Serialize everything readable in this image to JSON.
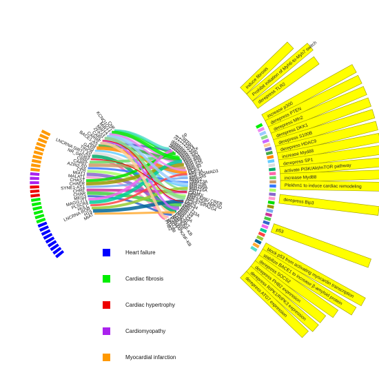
{
  "colors": {
    "heart_failure": "#0000ff",
    "cardiac_fibrosis": "#00ee00",
    "cardiac_hypertrophy": "#ee0000",
    "cardiomyopathy": "#aa22ee",
    "myocardial_infarction": "#ff9900",
    "annotation_box": "#ffff00",
    "annotation_border": "#999900"
  },
  "legend": [
    {
      "label": "Heart failure",
      "color": "#0000ff"
    },
    {
      "label": "Cardiac fibrosis",
      "color": "#00ee00"
    },
    {
      "label": "Cardiac hypertrophy",
      "color": "#ee0000"
    },
    {
      "label": "Cardiomyopathy",
      "color": "#aa22ee"
    },
    {
      "label": "Myocardial infarction",
      "color": "#ff9900"
    }
  ],
  "lncrnas": [
    "CHF",
    "KCNQ1OT1",
    "MIRT1",
    "MIRT2",
    "ZFAS1",
    "CARL",
    "CARRF",
    "BACE1-AS",
    "Ahit",
    "GAS5",
    "TINCR",
    "LNCRNA SIRT1 AS",
    "NR_045363",
    "CRRL",
    "CAREL",
    "AZIN2-SV",
    "CPR",
    "MIAT1",
    "MALAT1",
    "CHAST",
    "CHAER",
    "SYNE1-AS1",
    "CHRF",
    "CHAR",
    "MEG3",
    "MAGI1-IT1",
    "PLSCR4",
    "HULC",
    "LNCRNA ROR",
    "H19",
    "MIAT"
  ],
  "lncrna_groups": [
    {
      "disease": "myocardial_infarction",
      "count": 10
    },
    {
      "disease": "cardiomyopathy",
      "count": 3
    },
    {
      "disease": "cardiac_hypertrophy",
      "count": 3
    },
    {
      "disease": "cardiac_fibrosis",
      "count": 6
    },
    {
      "disease": "heart_failure",
      "count": 9
    }
  ],
  "targets": [
    "MIR-24",
    "MIR-21",
    "MIR-17-5p",
    "MIR-126",
    "MIR-133",
    "MIR-150",
    "MIR-206",
    "MIR-214",
    "MIR-302e",
    "MIR-330",
    "MIR-361",
    "MIR-489",
    "MIR-539",
    "MIR-525",
    "MIR-93",
    "PCR2",
    "MIR-34",
    "TGF-B/SMAD3",
    "MIR-145",
    "MMP2",
    "DNMT3A",
    "MIR-296",
    "MIR199A",
    "MIR216A",
    "SIRT1",
    "CAMKII",
    "MEK/ ERK/ CREB",
    "MIR-875/CAMKIID",
    "MIR-675/PA2G4",
    "PCR2",
    "MIR-34",
    "SIRT1",
    "MIR-133A",
    "MIR-19",
    "MIR-22",
    "MIR-23A",
    "MIR-20",
    "PI3K/AKT",
    "MAPK/NF-KB",
    "MIR-466",
    "P38MAPK/NF-KB",
    "SIRT1",
    "MYD88",
    "PHB2"
  ],
  "right_ring_colors": [
    "#00ee00",
    "#ee88ee",
    "#99ccff",
    "#88dd88",
    "#cc66ff",
    "#ffcc99",
    "#6666cc",
    "#44aa44",
    "#ff8800",
    "#66ccff",
    "#dddddd",
    "#00aa66",
    "#ff66aa",
    "#66dd66",
    "#cc9966",
    "#3377ff",
    "#aaff66",
    "#8866cc",
    "#ff99cc",
    "#00dd00",
    "#999900",
    "#77aaee",
    "#cc3399",
    "#44cc44",
    "#3366cc",
    "#ee66ee",
    "#00cc99",
    "#ff4444",
    "#99cc33",
    "#006699",
    "#ffaa33",
    "#55ddcc"
  ],
  "annotations": [
    "induce fibrosis",
    "Prohibit initiation of Myh6-to-Myh7 switch",
    "derepress TLR2",
    "increase p300",
    "derepress PTEN",
    "derepress Mfn2",
    "derepress DKK1",
    "derepress S100B",
    "derepress HDAC9",
    "increase Myd88",
    "derepress SP1",
    "activate PI3K/Akt/mTOR pathway",
    "increase Myd88",
    "Plekhm1 to induce cardiac remodeling",
    "derepress Bip3",
    "p53",
    "block p53 from activating myocardin transcription",
    "stabilize BACE1 to increase β-amyloid protein",
    "derepress SOCS2",
    "derepress PHB2 expression",
    "derepress RIPK1/RIPK3 expression",
    "derepress ATG7 expression"
  ]
}
